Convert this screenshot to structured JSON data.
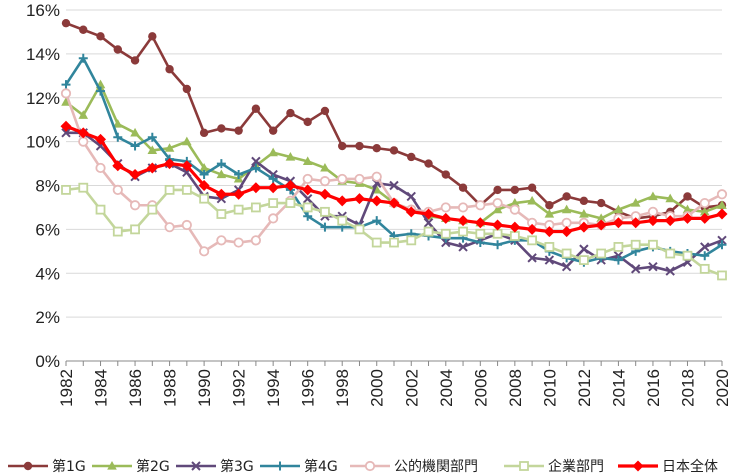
{
  "chart_data": {
    "type": "line",
    "title": "",
    "xlabel": "",
    "ylabel": "",
    "ylim": [
      0,
      16
    ],
    "y_ticks": [
      "0%",
      "2%",
      "4%",
      "6%",
      "8%",
      "10%",
      "12%",
      "14%",
      "16%"
    ],
    "x": [
      1982,
      1983,
      1984,
      1985,
      1986,
      1987,
      1988,
      1989,
      1990,
      1991,
      1992,
      1993,
      1994,
      1995,
      1996,
      1997,
      1998,
      1999,
      2000,
      2001,
      2002,
      2003,
      2004,
      2005,
      2006,
      2007,
      2008,
      2009,
      2010,
      2011,
      2012,
      2013,
      2014,
      2015,
      2016,
      2017,
      2018,
      2019,
      2020
    ],
    "x_tick_labels": [
      "1982",
      "1984",
      "1986",
      "1988",
      "1990",
      "1992",
      "1994",
      "1996",
      "1998",
      "2000",
      "2002",
      "2004",
      "2006",
      "2008",
      "2010",
      "2012",
      "2014",
      "2016",
      "2018",
      "2020"
    ],
    "legend_position": "bottom",
    "series": [
      {
        "name": "第1G",
        "color": "#8B3A3A",
        "marker": "circle",
        "values": [
          15.4,
          15.1,
          14.8,
          14.2,
          13.7,
          14.8,
          13.3,
          12.4,
          10.4,
          10.6,
          10.5,
          11.5,
          10.5,
          11.3,
          10.9,
          11.4,
          9.8,
          9.8,
          9.7,
          9.6,
          9.3,
          9.0,
          8.5,
          7.9,
          7.1,
          7.8,
          7.8,
          7.9,
          7.1,
          7.5,
          7.3,
          7.2,
          6.8,
          6.5,
          6.6,
          6.8,
          7.5,
          7.0,
          7.1
        ]
      },
      {
        "name": "第2G",
        "color": "#9BBB59",
        "marker": "triangle",
        "values": [
          11.8,
          11.2,
          12.6,
          10.8,
          10.4,
          9.6,
          9.7,
          10.0,
          8.8,
          8.5,
          8.3,
          8.9,
          9.5,
          9.3,
          9.1,
          8.8,
          8.2,
          8.1,
          7.8,
          7.2,
          6.9,
          6.6,
          6.5,
          6.4,
          6.3,
          6.9,
          7.2,
          7.3,
          6.7,
          6.9,
          6.7,
          6.5,
          6.9,
          7.2,
          7.5,
          7.4,
          6.9,
          6.8,
          7.1
        ]
      },
      {
        "name": "第3G",
        "color": "#60497A",
        "marker": "x",
        "values": [
          10.4,
          10.4,
          9.8,
          9.0,
          8.4,
          8.8,
          9.0,
          8.6,
          7.5,
          7.4,
          7.8,
          9.1,
          8.5,
          8.2,
          7.4,
          6.6,
          6.6,
          6.2,
          8.1,
          8.0,
          7.5,
          6.3,
          5.4,
          5.2,
          5.5,
          5.8,
          5.5,
          4.7,
          4.6,
          4.3,
          5.1,
          4.6,
          4.8,
          4.2,
          4.3,
          4.1,
          4.5,
          5.2,
          5.5
        ]
      },
      {
        "name": "第4G",
        "color": "#31859C",
        "marker": "plus",
        "values": [
          12.6,
          13.8,
          12.3,
          10.2,
          9.8,
          10.2,
          9.2,
          9.1,
          8.5,
          9.0,
          8.5,
          8.8,
          8.3,
          7.8,
          6.6,
          6.1,
          6.1,
          6.1,
          6.4,
          5.7,
          5.8,
          5.7,
          5.6,
          5.6,
          5.4,
          5.3,
          5.5,
          5.5,
          5.0,
          4.7,
          4.5,
          4.7,
          4.6,
          5.0,
          5.2,
          5.0,
          4.9,
          4.8,
          5.3
        ]
      },
      {
        "name": "公的機関部門",
        "color": "#E6B9B8",
        "marker": "circle-open",
        "values": [
          12.2,
          10.0,
          8.8,
          7.8,
          7.1,
          7.1,
          6.1,
          6.2,
          5.0,
          5.5,
          5.4,
          5.5,
          6.5,
          7.3,
          8.3,
          8.2,
          8.3,
          8.3,
          8.4,
          7.2,
          6.9,
          6.8,
          7.0,
          7.0,
          7.1,
          7.2,
          6.9,
          6.3,
          6.2,
          6.3,
          6.3,
          6.2,
          6.5,
          6.6,
          6.8,
          6.6,
          6.6,
          7.2,
          7.6
        ]
      },
      {
        "name": "企業部門",
        "color": "#C3D69B",
        "marker": "square-open",
        "values": [
          7.8,
          7.9,
          6.9,
          5.9,
          6.0,
          6.9,
          7.8,
          7.8,
          7.4,
          6.7,
          6.9,
          7.0,
          7.2,
          7.2,
          7.0,
          6.8,
          6.4,
          6.0,
          5.4,
          5.4,
          5.5,
          5.9,
          5.8,
          5.9,
          5.8,
          5.8,
          5.7,
          5.5,
          5.2,
          4.9,
          4.6,
          4.9,
          5.2,
          5.3,
          5.3,
          4.9,
          4.8,
          4.2,
          3.9
        ]
      },
      {
        "name": "日本全体",
        "color": "#FF0000",
        "marker": "diamond",
        "values": [
          10.7,
          10.4,
          10.1,
          8.9,
          8.5,
          8.8,
          9.0,
          8.9,
          8.0,
          7.6,
          7.6,
          7.9,
          7.9,
          8.0,
          7.8,
          7.6,
          7.3,
          7.4,
          7.3,
          7.2,
          6.8,
          6.7,
          6.5,
          6.4,
          6.3,
          6.2,
          6.1,
          6.0,
          5.9,
          5.9,
          6.1,
          6.2,
          6.3,
          6.3,
          6.4,
          6.4,
          6.5,
          6.5,
          6.7
        ]
      }
    ]
  }
}
